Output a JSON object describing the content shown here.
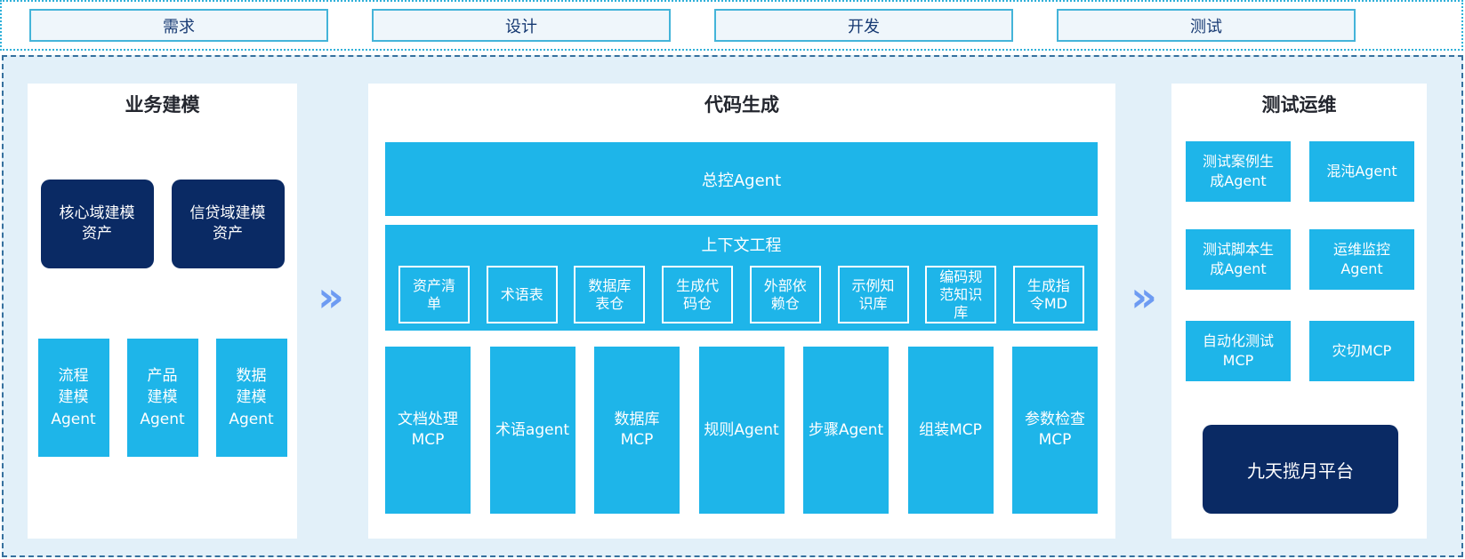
{
  "phases": [
    "需求",
    "设计",
    "开发",
    "测试"
  ],
  "flow_arrow": "»",
  "colors": {
    "cyan": "#1eb5e9",
    "navy": "#0a2a64",
    "canvas_bg": "#e2f0f9",
    "panel_bg": "#ffffff",
    "arrow_blue": "#6d9bf2",
    "phase_box_border": "#44b4d9",
    "phase_box_fill": "#eff6fb",
    "strip_border_dotted": "#2fb0d9",
    "frame_border_dashed": "#35709e"
  },
  "business_modeling": {
    "title": "业务建模",
    "assets": [
      "核心域建模\n资产",
      "信贷域建模\n资产"
    ],
    "agents": [
      "流程\n建模\nAgent",
      "产品\n建模\nAgent",
      "数据\n建模\nAgent"
    ]
  },
  "code_generation": {
    "title": "代码生成",
    "master_agent": "总控Agent",
    "context_engineering": {
      "title": "上下文工程",
      "items": [
        "资产清\n单",
        "术语表",
        "数据库\n表仓",
        "生成代\n码仓",
        "外部依\n赖仓",
        "示例知\n识库",
        "编码规\n范知识\n库",
        "生成指\n令MD"
      ]
    },
    "tools": [
      "文档处理\nMCP",
      "术语agent",
      "数据库\nMCP",
      "规则Agent",
      "步骤Agent",
      "组装MCP",
      "参数检查\nMCP"
    ]
  },
  "test_ops": {
    "title": "测试运维",
    "boxes": [
      "测试案例生\n成Agent",
      "混沌Agent",
      "测试脚本生\n成Agent",
      "运维监控\nAgent",
      "自动化测试\nMCP",
      "灾切MCP"
    ],
    "platform": "九天揽月平台"
  }
}
